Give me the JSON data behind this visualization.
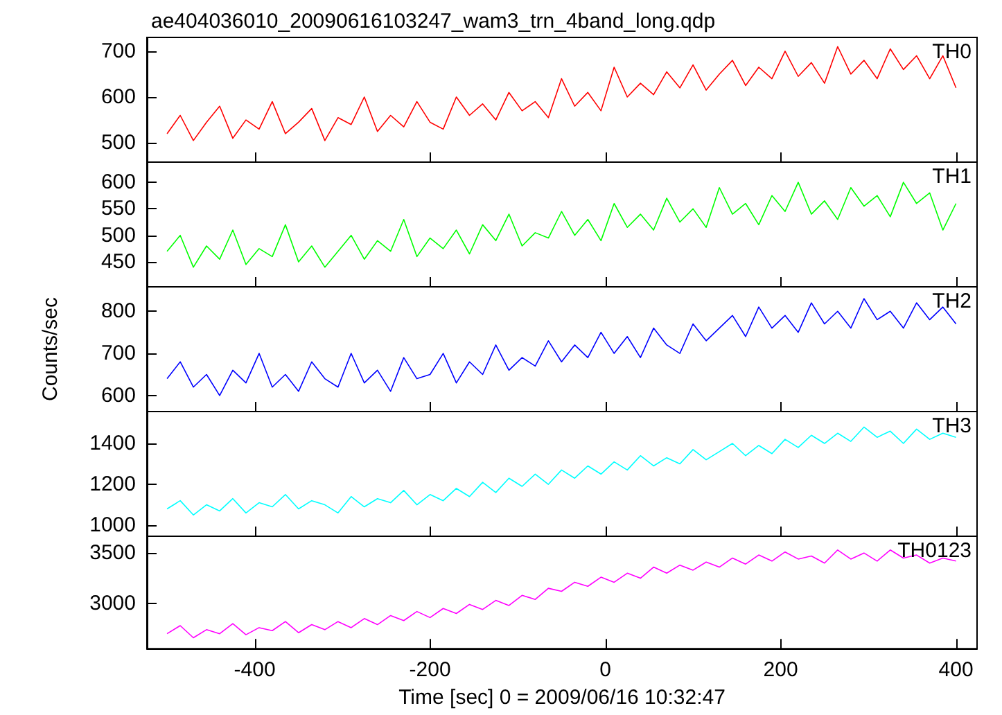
{
  "chart_data": [
    {
      "type": "line",
      "title": "ae404036010_20090616103247_wam3_trn_4band_long.qdp",
      "x": [
        -500,
        -485,
        -470,
        -455,
        -440,
        -425,
        -410,
        -395,
        -380,
        -365,
        -350,
        -335,
        -320,
        -305,
        -290,
        -275,
        -260,
        -245,
        -230,
        -215,
        -200,
        -185,
        -170,
        -155,
        -140,
        -125,
        -110,
        -95,
        -80,
        -65,
        -50,
        -35,
        -20,
        -5,
        10,
        25,
        40,
        55,
        70,
        85,
        100,
        115,
        130,
        145,
        160,
        175,
        190,
        205,
        220,
        235,
        250,
        265,
        280,
        295,
        310,
        325,
        340,
        355,
        370,
        385,
        400
      ],
      "series": [
        {
          "name": "TH0",
          "color": "#ff0000",
          "values": [
            520,
            560,
            505,
            545,
            580,
            510,
            550,
            530,
            590,
            520,
            545,
            575,
            505,
            555,
            540,
            600,
            525,
            560,
            535,
            590,
            545,
            530,
            600,
            560,
            585,
            550,
            610,
            570,
            590,
            555,
            640,
            580,
            610,
            570,
            665,
            600,
            630,
            605,
            655,
            620,
            670,
            615,
            650,
            680,
            625,
            665,
            640,
            700,
            645,
            675,
            630,
            710,
            650,
            680,
            640,
            705,
            660,
            690,
            640,
            690,
            620
          ]
        }
      ],
      "xlim": [
        -523,
        424
      ],
      "xticks": [
        -400,
        -200,
        0,
        200,
        400
      ],
      "ylim": [
        458,
        730
      ],
      "yticks": [
        500,
        600,
        700
      ],
      "tick_labels": "y",
      "legend": "top right",
      "marker": "none",
      "grid": false
    },
    {
      "type": "line",
      "x": [
        -500,
        -485,
        -470,
        -455,
        -440,
        -425,
        -410,
        -395,
        -380,
        -365,
        -350,
        -335,
        -320,
        -305,
        -290,
        -275,
        -260,
        -245,
        -230,
        -215,
        -200,
        -185,
        -170,
        -155,
        -140,
        -125,
        -110,
        -95,
        -80,
        -65,
        -50,
        -35,
        -20,
        -5,
        10,
        25,
        40,
        55,
        70,
        85,
        100,
        115,
        130,
        145,
        160,
        175,
        190,
        205,
        220,
        235,
        250,
        265,
        280,
        295,
        310,
        325,
        340,
        355,
        370,
        385,
        400
      ],
      "series": [
        {
          "name": "TH1",
          "color": "#00ff00",
          "values": [
            470,
            500,
            440,
            480,
            455,
            510,
            445,
            475,
            460,
            520,
            450,
            480,
            440,
            470,
            500,
            455,
            490,
            470,
            530,
            460,
            495,
            475,
            510,
            465,
            520,
            490,
            540,
            480,
            505,
            495,
            545,
            500,
            530,
            490,
            560,
            515,
            540,
            510,
            570,
            525,
            550,
            515,
            590,
            540,
            560,
            520,
            575,
            545,
            600,
            540,
            565,
            530,
            590,
            555,
            575,
            535,
            600,
            560,
            580,
            510,
            560
          ]
        }
      ],
      "xlim": [
        -523,
        424
      ],
      "xticks": [
        -400,
        -200,
        0,
        200,
        400
      ],
      "ylim": [
        403,
        638
      ],
      "yticks": [
        450,
        500,
        550,
        600
      ],
      "tick_labels": "y",
      "legend": "top right",
      "marker": "none",
      "grid": false
    },
    {
      "type": "line",
      "ylabel": "Counts/sec",
      "x": [
        -500,
        -485,
        -470,
        -455,
        -440,
        -425,
        -410,
        -395,
        -380,
        -365,
        -350,
        -335,
        -320,
        -305,
        -290,
        -275,
        -260,
        -245,
        -230,
        -215,
        -200,
        -185,
        -170,
        -155,
        -140,
        -125,
        -110,
        -95,
        -80,
        -65,
        -50,
        -35,
        -20,
        -5,
        10,
        25,
        40,
        55,
        70,
        85,
        100,
        115,
        130,
        145,
        160,
        175,
        190,
        205,
        220,
        235,
        250,
        265,
        280,
        295,
        310,
        325,
        340,
        355,
        370,
        385,
        400
      ],
      "series": [
        {
          "name": "TH2",
          "color": "#0000ff",
          "values": [
            640,
            680,
            620,
            650,
            600,
            660,
            630,
            700,
            620,
            650,
            610,
            680,
            640,
            620,
            700,
            630,
            660,
            610,
            690,
            640,
            650,
            700,
            630,
            680,
            650,
            720,
            660,
            690,
            670,
            730,
            680,
            720,
            690,
            750,
            700,
            740,
            690,
            760,
            720,
            700,
            770,
            730,
            760,
            790,
            740,
            810,
            760,
            790,
            750,
            820,
            770,
            800,
            760,
            830,
            780,
            800,
            760,
            820,
            780,
            810,
            770
          ]
        }
      ],
      "xlim": [
        -523,
        424
      ],
      "xticks": [
        -400,
        -200,
        0,
        200,
        400
      ],
      "ylim": [
        562,
        858
      ],
      "yticks": [
        600,
        700,
        800
      ],
      "tick_labels": "y",
      "legend": "top right",
      "marker": "none",
      "grid": false
    },
    {
      "type": "line",
      "x": [
        -500,
        -485,
        -470,
        -455,
        -440,
        -425,
        -410,
        -395,
        -380,
        -365,
        -350,
        -335,
        -320,
        -305,
        -290,
        -275,
        -260,
        -245,
        -230,
        -215,
        -200,
        -185,
        -170,
        -155,
        -140,
        -125,
        -110,
        -95,
        -80,
        -65,
        -50,
        -35,
        -20,
        -5,
        10,
        25,
        40,
        55,
        70,
        85,
        100,
        115,
        130,
        145,
        160,
        175,
        190,
        205,
        220,
        235,
        250,
        265,
        280,
        295,
        310,
        325,
        340,
        355,
        370,
        385,
        400
      ],
      "series": [
        {
          "name": "TH3",
          "color": "#00ffff",
          "values": [
            1080,
            1120,
            1050,
            1100,
            1070,
            1130,
            1060,
            1110,
            1090,
            1150,
            1080,
            1120,
            1100,
            1060,
            1140,
            1090,
            1130,
            1110,
            1170,
            1100,
            1150,
            1120,
            1180,
            1140,
            1210,
            1160,
            1230,
            1190,
            1250,
            1200,
            1270,
            1230,
            1290,
            1250,
            1310,
            1270,
            1340,
            1290,
            1330,
            1300,
            1370,
            1320,
            1360,
            1400,
            1340,
            1390,
            1350,
            1420,
            1380,
            1440,
            1400,
            1450,
            1410,
            1480,
            1430,
            1460,
            1400,
            1470,
            1420,
            1450,
            1430
          ]
        }
      ],
      "xlim": [
        -523,
        424
      ],
      "xticks": [
        -400,
        -200,
        0,
        200,
        400
      ],
      "ylim": [
        946,
        1556
      ],
      "yticks": [
        1000,
        1200,
        1400
      ],
      "tick_labels": "y",
      "legend": "top right",
      "marker": "none",
      "grid": false
    },
    {
      "type": "line",
      "xlabel": "Time [sec] 0 = 2009/06/16 10:32:47",
      "x": [
        -500,
        -485,
        -470,
        -455,
        -440,
        -425,
        -410,
        -395,
        -380,
        -365,
        -350,
        -335,
        -320,
        -305,
        -290,
        -275,
        -260,
        -245,
        -230,
        -215,
        -200,
        -185,
        -170,
        -155,
        -140,
        -125,
        -110,
        -95,
        -80,
        -65,
        -50,
        -35,
        -20,
        -5,
        10,
        25,
        40,
        55,
        70,
        85,
        100,
        115,
        130,
        145,
        160,
        175,
        190,
        205,
        220,
        235,
        250,
        265,
        280,
        295,
        310,
        325,
        340,
        355,
        370,
        385,
        400
      ],
      "series": [
        {
          "name": "TH0123",
          "color": "#ff00ff",
          "values": [
            2700,
            2780,
            2660,
            2740,
            2700,
            2800,
            2690,
            2760,
            2730,
            2820,
            2710,
            2790,
            2740,
            2820,
            2760,
            2850,
            2790,
            2880,
            2830,
            2920,
            2860,
            2950,
            2900,
            2990,
            2940,
            3030,
            2980,
            3080,
            3040,
            3150,
            3120,
            3210,
            3170,
            3260,
            3210,
            3300,
            3250,
            3360,
            3300,
            3380,
            3330,
            3410,
            3360,
            3450,
            3390,
            3480,
            3420,
            3510,
            3440,
            3470,
            3400,
            3530,
            3440,
            3500,
            3420,
            3530,
            3450,
            3480,
            3400,
            3450,
            3420
          ]
        }
      ],
      "xlim": [
        -523,
        424
      ],
      "xticks": [
        -400,
        -200,
        0,
        200,
        400
      ],
      "ylim": [
        2552,
        3666
      ],
      "yticks": [
        3000,
        3500
      ],
      "legend": "top right",
      "marker": "none",
      "grid": false
    }
  ]
}
